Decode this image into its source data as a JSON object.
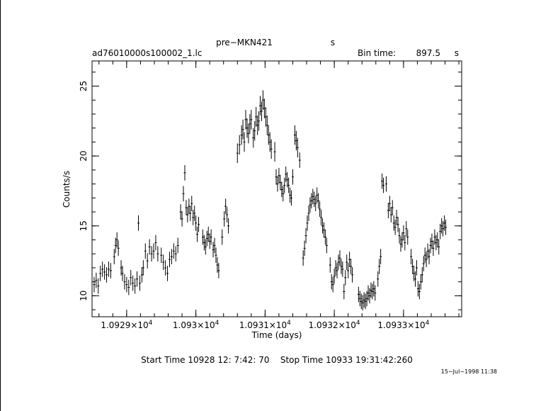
{
  "chart_data": {
    "type": "scatter",
    "title": "pre−MKN421",
    "title_unit": "s",
    "file_label": "ad76010000s100002_1.lc",
    "bin_time": {
      "label": "Bin time:",
      "value": "897.5",
      "unit": "s"
    },
    "xlabel": "Time (days)",
    "ylabel": "Counts/s",
    "xlim": [
      10928.5,
      10933.84
    ],
    "ylim": [
      8.5,
      26.8
    ],
    "xticks": [
      {
        "mant": "1.0929",
        "exp": "4",
        "value": 10929
      },
      {
        "mant": "1.093",
        "exp": "4",
        "value": 10930
      },
      {
        "mant": "1.0931",
        "exp": "4",
        "value": 10931
      },
      {
        "mant": "1.0932",
        "exp": "4",
        "value": 10932
      },
      {
        "mant": "1.0933",
        "exp": "4",
        "value": 10933
      }
    ],
    "yticks": [
      10,
      15,
      20,
      25
    ],
    "footer": "Start Time 10928 12: 7:42: 70    Stop Time 10933 19:31:42:260",
    "date_stamp": "15−Jul−1998 11:38",
    "points": [
      [
        10928.53,
        10.8
      ],
      [
        10928.56,
        11.1
      ],
      [
        10928.59,
        10.7
      ],
      [
        10928.62,
        11.6
      ],
      [
        10928.65,
        11.9
      ],
      [
        10928.68,
        11.7
      ],
      [
        10928.71,
        11.5
      ],
      [
        10928.74,
        11.9
      ],
      [
        10928.77,
        11.8
      ],
      [
        10928.82,
        12.8
      ],
      [
        10928.84,
        13.6
      ],
      [
        10928.86,
        14.0
      ],
      [
        10928.88,
        13.4
      ],
      [
        10928.92,
        12.0
      ],
      [
        10928.94,
        11.6
      ],
      [
        10928.97,
        11.0
      ],
      [
        10929.0,
        10.8
      ],
      [
        10929.03,
        10.6
      ],
      [
        10929.06,
        11.3
      ],
      [
        10929.09,
        10.9
      ],
      [
        10929.12,
        10.7
      ],
      [
        10929.15,
        11.2
      ],
      [
        10929.17,
        15.2
      ],
      [
        10929.19,
        10.9
      ],
      [
        10929.22,
        11.5
      ],
      [
        10929.24,
        12.0
      ],
      [
        10929.27,
        13.2
      ],
      [
        10929.3,
        12.5
      ],
      [
        10929.33,
        13.5
      ],
      [
        10929.36,
        13.0
      ],
      [
        10929.39,
        13.2
      ],
      [
        10929.42,
        13.8
      ],
      [
        10929.45,
        13.0
      ],
      [
        10929.5,
        12.9
      ],
      [
        10929.53,
        12.4
      ],
      [
        10929.56,
        12.0
      ],
      [
        10929.59,
        11.6
      ],
      [
        10929.62,
        12.6
      ],
      [
        10929.65,
        12.8
      ],
      [
        10929.68,
        13.2
      ],
      [
        10929.71,
        13.0
      ],
      [
        10929.74,
        13.6
      ],
      [
        10929.78,
        16.0
      ],
      [
        10929.8,
        15.5
      ],
      [
        10929.82,
        17.3
      ],
      [
        10929.84,
        18.8
      ],
      [
        10929.86,
        16.3
      ],
      [
        10929.88,
        15.8
      ],
      [
        10929.9,
        16.4
      ],
      [
        10929.92,
        15.9
      ],
      [
        10929.94,
        16.6
      ],
      [
        10929.96,
        15.6
      ],
      [
        10929.98,
        15.9
      ],
      [
        10930.0,
        15.2
      ],
      [
        10930.02,
        14.4
      ],
      [
        10930.04,
        15.1
      ],
      [
        10930.1,
        14.2
      ],
      [
        10930.12,
        13.8
      ],
      [
        10930.14,
        13.5
      ],
      [
        10930.16,
        14.1
      ],
      [
        10930.18,
        14.4
      ],
      [
        10930.2,
        13.9
      ],
      [
        10930.22,
        14.2
      ],
      [
        10930.25,
        13.3
      ],
      [
        10930.27,
        13.6
      ],
      [
        10930.29,
        12.9
      ],
      [
        10930.31,
        12.2
      ],
      [
        10930.33,
        11.8
      ],
      [
        10930.38,
        14.2
      ],
      [
        10930.41,
        15.5
      ],
      [
        10930.43,
        16.4
      ],
      [
        10930.45,
        15.8
      ],
      [
        10930.47,
        15.0
      ],
      [
        10930.6,
        20.2
      ],
      [
        10930.63,
        20.8
      ],
      [
        10930.66,
        21.5
      ],
      [
        10930.68,
        21.9
      ],
      [
        10930.7,
        21.0
      ],
      [
        10930.72,
        22.6
      ],
      [
        10930.74,
        22.0
      ],
      [
        10930.76,
        21.6
      ],
      [
        10930.78,
        22.3
      ],
      [
        10930.8,
        22.6
      ],
      [
        10930.83,
        21.3
      ],
      [
        10930.85,
        21.8
      ],
      [
        10930.87,
        22.8
      ],
      [
        10930.89,
        22.2
      ],
      [
        10930.91,
        22.5
      ],
      [
        10930.93,
        23.6
      ],
      [
        10930.95,
        23.2
      ],
      [
        10930.97,
        24.0
      ],
      [
        10930.99,
        23.4
      ],
      [
        10931.01,
        22.8
      ],
      [
        10931.03,
        22.2
      ],
      [
        10931.05,
        21.5
      ],
      [
        10931.07,
        21.0
      ],
      [
        10931.09,
        20.5
      ],
      [
        10931.14,
        20.3
      ],
      [
        10931.16,
        18.5
      ],
      [
        10931.18,
        18.0
      ],
      [
        10931.2,
        18.6
      ],
      [
        10931.22,
        18.1
      ],
      [
        10931.24,
        17.6
      ],
      [
        10931.26,
        17.3
      ],
      [
        10931.28,
        17.9
      ],
      [
        10931.3,
        18.7
      ],
      [
        10931.32,
        18.3
      ],
      [
        10931.34,
        17.9
      ],
      [
        10931.36,
        17.2
      ],
      [
        10931.38,
        17.0
      ],
      [
        10931.4,
        18.5
      ],
      [
        10931.43,
        21.5
      ],
      [
        10931.45,
        21.1
      ],
      [
        10931.47,
        20.6
      ],
      [
        10931.5,
        19.7
      ],
      [
        10931.55,
        12.7
      ],
      [
        10931.57,
        13.4
      ],
      [
        10931.59,
        14.3
      ],
      [
        10931.61,
        15.2
      ],
      [
        10931.63,
        15.9
      ],
      [
        10931.65,
        16.5
      ],
      [
        10931.67,
        16.8
      ],
      [
        10931.69,
        17.1
      ],
      [
        10931.71,
        16.9
      ],
      [
        10931.73,
        16.6
      ],
      [
        10931.75,
        17.2
      ],
      [
        10931.77,
        16.8
      ],
      [
        10931.79,
        16.2
      ],
      [
        10931.81,
        15.6
      ],
      [
        10931.83,
        15.0
      ],
      [
        10931.85,
        14.7
      ],
      [
        10931.87,
        14.2
      ],
      [
        10931.89,
        13.6
      ],
      [
        10931.94,
        12.2
      ],
      [
        10931.96,
        11.0
      ],
      [
        10931.98,
        10.8
      ],
      [
        10932.0,
        11.4
      ],
      [
        10932.02,
        12.0
      ],
      [
        10932.04,
        11.8
      ],
      [
        10932.06,
        12.4
      ],
      [
        10932.08,
        12.7
      ],
      [
        10932.1,
        12.1
      ],
      [
        10932.12,
        11.9
      ],
      [
        10932.14,
        10.3
      ],
      [
        10932.16,
        11.3
      ],
      [
        10932.18,
        12.4
      ],
      [
        10932.2,
        11.8
      ],
      [
        10932.22,
        12.6
      ],
      [
        10932.24,
        12.1
      ],
      [
        10932.26,
        11.5
      ],
      [
        10932.35,
        10.1
      ],
      [
        10932.37,
        9.8
      ],
      [
        10932.39,
        9.6
      ],
      [
        10932.41,
        9.5
      ],
      [
        10932.43,
        9.7
      ],
      [
        10932.45,
        9.6
      ],
      [
        10932.47,
        9.8
      ],
      [
        10932.49,
        10.2
      ],
      [
        10932.51,
        10.0
      ],
      [
        10932.53,
        10.4
      ],
      [
        10932.55,
        10.3
      ],
      [
        10932.57,
        10.5
      ],
      [
        10932.59,
        10.2
      ],
      [
        10932.63,
        11.2
      ],
      [
        10932.65,
        12.1
      ],
      [
        10932.67,
        12.8
      ],
      [
        10932.69,
        18.2
      ],
      [
        10932.71,
        17.9
      ],
      [
        10932.75,
        18.0
      ],
      [
        10932.78,
        16.1
      ],
      [
        10932.8,
        16.6
      ],
      [
        10932.82,
        15.8
      ],
      [
        10932.84,
        16.3
      ],
      [
        10932.86,
        15.2
      ],
      [
        10932.88,
        14.9
      ],
      [
        10932.9,
        15.6
      ],
      [
        10932.92,
        15.1
      ],
      [
        10932.94,
        14.3
      ],
      [
        10932.96,
        13.7
      ],
      [
        10932.98,
        14.0
      ],
      [
        10933.0,
        14.5
      ],
      [
        10933.02,
        13.8
      ],
      [
        10933.04,
        14.8
      ],
      [
        10933.06,
        14.2
      ],
      [
        10933.11,
        12.8
      ],
      [
        10933.13,
        12.1
      ],
      [
        10933.15,
        11.6
      ],
      [
        10933.17,
        11.2
      ],
      [
        10933.19,
        12.0
      ],
      [
        10933.21,
        10.5
      ],
      [
        10933.23,
        10.3
      ],
      [
        10933.25,
        11.0
      ],
      [
        10933.27,
        11.5
      ],
      [
        10933.29,
        12.3
      ],
      [
        10933.31,
        12.9
      ],
      [
        10933.33,
        12.6
      ],
      [
        10933.35,
        13.2
      ],
      [
        10933.37,
        12.8
      ],
      [
        10933.39,
        13.6
      ],
      [
        10933.41,
        13.9
      ],
      [
        10933.43,
        13.4
      ],
      [
        10933.45,
        14.2
      ],
      [
        10933.47,
        13.8
      ],
      [
        10933.49,
        14.0
      ],
      [
        10933.51,
        13.5
      ],
      [
        10933.53,
        14.6
      ],
      [
        10933.55,
        15.0
      ],
      [
        10933.57,
        14.8
      ],
      [
        10933.59,
        15.2
      ],
      [
        10933.61,
        14.9
      ]
    ]
  }
}
